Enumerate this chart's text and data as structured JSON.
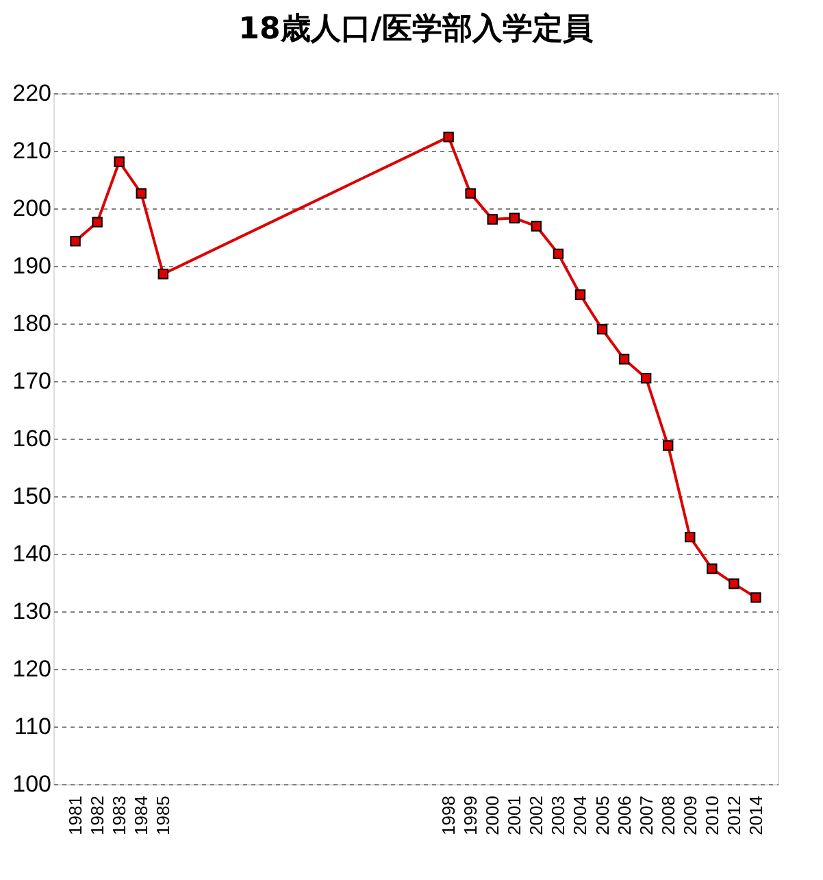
{
  "chart_data": {
    "type": "line",
    "title": "18歳人口/医学部入学定員",
    "categories": [
      "1981",
      "1982",
      "1983",
      "1984",
      "1985",
      null,
      null,
      null,
      null,
      null,
      null,
      null,
      null,
      null,
      null,
      null,
      null,
      "1998",
      "1999",
      "2000",
      "2001",
      "2002",
      "2003",
      "2004",
      "2005",
      "2006",
      "2007",
      "2008",
      "2009",
      "2010",
      "2012",
      "2014"
    ],
    "series": [
      {
        "color": "#dd0000",
        "values": [
          194.3,
          197.6,
          208.1,
          202.6,
          188.6,
          null,
          null,
          null,
          null,
          null,
          null,
          null,
          null,
          null,
          null,
          null,
          null,
          212.4,
          202.6,
          198.1,
          198.3,
          196.9,
          192.1,
          185.0,
          179.0,
          173.8,
          170.5,
          158.8,
          142.9,
          137.4,
          134.8,
          132.4
        ]
      }
    ],
    "ylim": [
      100,
      220
    ],
    "yticks": [
      100,
      110,
      120,
      130,
      140,
      150,
      160,
      170,
      180,
      190,
      200,
      210,
      220
    ],
    "grid": "y",
    "marker": "square",
    "line_style": "solid"
  }
}
